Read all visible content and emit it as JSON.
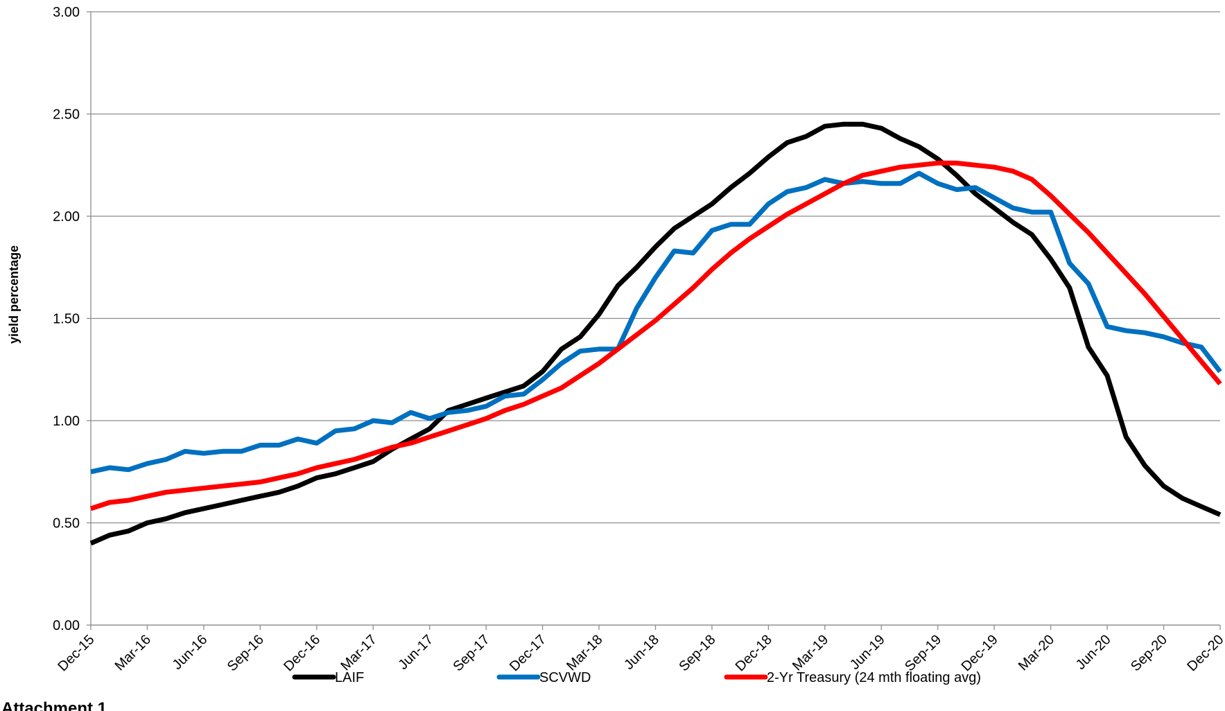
{
  "chart_data": {
    "type": "line",
    "y_label": "yield percentage",
    "annotation": "Attachment 1",
    "categories": [
      "Dec-15",
      null,
      null,
      "Mar-16",
      null,
      null,
      "Jun-16",
      null,
      null,
      "Sep-16",
      null,
      null,
      "Dec-16",
      null,
      null,
      "Mar-17",
      null,
      null,
      "Jun-17",
      null,
      null,
      "Sep-17",
      null,
      null,
      "Dec-17",
      null,
      null,
      "Mar-18",
      null,
      null,
      "Jun-18",
      null,
      null,
      "Sep-18",
      null,
      null,
      "Dec-18",
      null,
      null,
      "Mar-19",
      null,
      null,
      "Jun-19",
      null,
      null,
      "Sep-19",
      null,
      null,
      "Dec-19",
      null,
      null,
      "Mar-20",
      null,
      null,
      "Jun-20",
      null,
      null,
      "Sep-20",
      null,
      null,
      "Dec-20"
    ],
    "series": [
      {
        "name": "LAIF",
        "color": "#000000",
        "values": [
          0.4,
          0.44,
          0.46,
          0.5,
          0.52,
          0.55,
          0.57,
          0.59,
          0.61,
          0.63,
          0.65,
          0.68,
          0.72,
          0.74,
          0.77,
          0.8,
          0.86,
          0.91,
          0.96,
          1.05,
          1.08,
          1.11,
          1.14,
          1.17,
          1.24,
          1.35,
          1.41,
          1.52,
          1.66,
          1.75,
          1.85,
          1.94,
          2.0,
          2.06,
          2.14,
          2.21,
          2.29,
          2.36,
          2.39,
          2.44,
          2.45,
          2.45,
          2.43,
          2.38,
          2.34,
          2.28,
          2.2,
          2.11,
          2.04,
          1.97,
          1.91,
          1.79,
          1.65,
          1.36,
          1.22,
          0.92,
          0.78,
          0.68,
          0.62,
          0.58,
          0.54
        ]
      },
      {
        "name": "SCVWD",
        "color": "#0070c0",
        "values": [
          0.75,
          0.77,
          0.76,
          0.79,
          0.81,
          0.85,
          0.84,
          0.85,
          0.85,
          0.88,
          0.88,
          0.91,
          0.89,
          0.95,
          0.96,
          1.0,
          0.99,
          1.04,
          1.01,
          1.04,
          1.05,
          1.07,
          1.12,
          1.13,
          1.2,
          1.28,
          1.34,
          1.35,
          1.35,
          1.55,
          1.7,
          1.83,
          1.82,
          1.93,
          1.96,
          1.96,
          2.06,
          2.12,
          2.14,
          2.18,
          2.16,
          2.17,
          2.16,
          2.16,
          2.21,
          2.16,
          2.13,
          2.14,
          2.09,
          2.04,
          2.02,
          2.02,
          1.77,
          1.67,
          1.46,
          1.44,
          1.43,
          1.41,
          1.38,
          1.36,
          1.24
        ]
      },
      {
        "name": "2-Yr Treasury (24 mth floating avg)",
        "color": "#ff0000",
        "values": [
          0.57,
          0.6,
          0.61,
          0.63,
          0.65,
          0.66,
          0.67,
          0.68,
          0.69,
          0.7,
          0.72,
          0.74,
          0.77,
          0.79,
          0.81,
          0.84,
          0.87,
          0.89,
          0.92,
          0.95,
          0.98,
          1.01,
          1.05,
          1.08,
          1.12,
          1.16,
          1.22,
          1.28,
          1.35,
          1.42,
          1.49,
          1.57,
          1.65,
          1.74,
          1.82,
          1.89,
          1.95,
          2.01,
          2.06,
          2.11,
          2.16,
          2.2,
          2.22,
          2.24,
          2.25,
          2.26,
          2.26,
          2.25,
          2.24,
          2.22,
          2.18,
          2.1,
          2.01,
          1.92,
          1.82,
          1.72,
          1.62,
          1.51,
          1.4,
          1.29,
          1.18
        ]
      }
    ],
    "ylim": [
      0,
      3
    ],
    "yticks": [
      {
        "value": 0,
        "label": "0.00"
      },
      {
        "value": 0.5,
        "label": "0.50"
      },
      {
        "value": 1,
        "label": "1.00"
      },
      {
        "value": 1.5,
        "label": "1.50"
      },
      {
        "value": 2,
        "label": "2.00"
      },
      {
        "value": 2.5,
        "label": "2.50"
      },
      {
        "value": 3,
        "label": "3.00"
      }
    ],
    "grid": true,
    "legend": "bottom"
  }
}
